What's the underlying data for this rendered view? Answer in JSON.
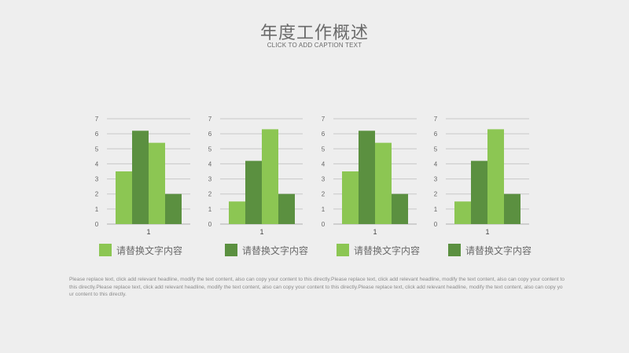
{
  "header": {
    "title": "年度工作概述",
    "subtitle": "CLICK TO ADD CAPTION TEXT"
  },
  "colors": {
    "light_green": "#8cc653",
    "dark_green": "#5b9040",
    "grid": "#c8c8c8",
    "axis": "#b0b0b0",
    "tick_text": "#666666"
  },
  "legend": [
    {
      "label": "请替换文字内容",
      "color": "#8cc653"
    },
    {
      "label": "请替换文字内容",
      "color": "#5b9040"
    },
    {
      "label": "请替换文字内容",
      "color": "#8cc653"
    },
    {
      "label": "请替换文字内容",
      "color": "#5b9040"
    }
  ],
  "chart_data": [
    {
      "type": "bar",
      "categories": [
        "1"
      ],
      "ylim": [
        0,
        7
      ],
      "yticks": [
        0,
        1,
        2,
        3,
        4,
        5,
        6,
        7
      ],
      "series": [
        {
          "values": [
            3.5
          ],
          "color": "#8cc653"
        },
        {
          "values": [
            6.2
          ],
          "color": "#5b9040"
        },
        {
          "values": [
            5.4
          ],
          "color": "#8cc653"
        },
        {
          "values": [
            2.0
          ],
          "color": "#5b9040"
        }
      ]
    },
    {
      "type": "bar",
      "categories": [
        "1"
      ],
      "ylim": [
        0,
        7
      ],
      "yticks": [
        0,
        1,
        2,
        3,
        4,
        5,
        6,
        7
      ],
      "series": [
        {
          "values": [
            1.5
          ],
          "color": "#8cc653"
        },
        {
          "values": [
            4.2
          ],
          "color": "#5b9040"
        },
        {
          "values": [
            6.3
          ],
          "color": "#8cc653"
        },
        {
          "values": [
            2.0
          ],
          "color": "#5b9040"
        }
      ]
    },
    {
      "type": "bar",
      "categories": [
        "1"
      ],
      "ylim": [
        0,
        7
      ],
      "yticks": [
        0,
        1,
        2,
        3,
        4,
        5,
        6,
        7
      ],
      "series": [
        {
          "values": [
            3.5
          ],
          "color": "#8cc653"
        },
        {
          "values": [
            6.2
          ],
          "color": "#5b9040"
        },
        {
          "values": [
            5.4
          ],
          "color": "#8cc653"
        },
        {
          "values": [
            2.0
          ],
          "color": "#5b9040"
        }
      ]
    },
    {
      "type": "bar",
      "categories": [
        "1"
      ],
      "ylim": [
        0,
        7
      ],
      "yticks": [
        0,
        1,
        2,
        3,
        4,
        5,
        6,
        7
      ],
      "series": [
        {
          "values": [
            1.5
          ],
          "color": "#8cc653"
        },
        {
          "values": [
            4.2
          ],
          "color": "#5b9040"
        },
        {
          "values": [
            6.3
          ],
          "color": "#8cc653"
        },
        {
          "values": [
            2.0
          ],
          "color": "#5b9040"
        }
      ]
    }
  ],
  "body_text": "Please replace text, click add relevant headline, modify the text content, also can copy your content to this directly.Please replace text, click add relevant headline, modify the text content, also can copy your content to this directly.Please replace text, click add relevant headline, modify the text content, also can copy your content to this directly.Please replace text, click add relevant headline, modify the text content, also can copy your content to this directly."
}
